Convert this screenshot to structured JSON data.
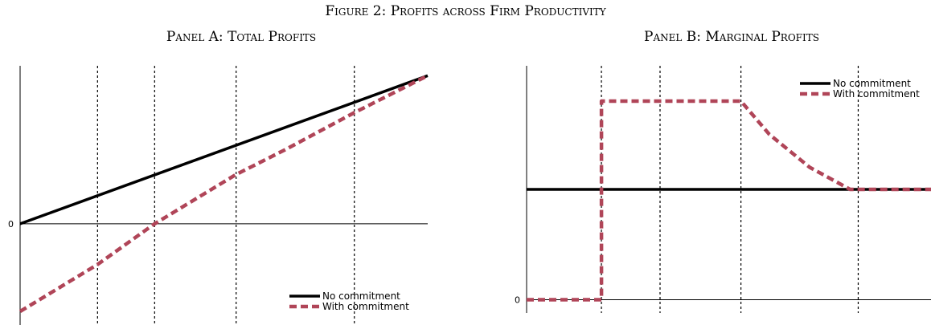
{
  "figure_caption": "Figure 2: Profits across Firm Productivity",
  "colors": {
    "no_commitment": "#000000",
    "with_commitment": "#b04558",
    "axis": "#000000"
  },
  "chart_data": [
    {
      "type": "line",
      "title": "Panel A: Total Profits",
      "xlabel": "",
      "ylabel": "",
      "xlim": [
        0,
        1
      ],
      "ylim": [
        -0.82,
        1.28
      ],
      "yticks": [
        {
          "value": 0,
          "label": "0"
        }
      ],
      "vlines": [
        0.19,
        0.33,
        0.53,
        0.82
      ],
      "grid": false,
      "legend": {
        "position": "bottom-right",
        "entries": [
          "No commitment",
          "With commitment"
        ]
      },
      "series": [
        {
          "name": "No commitment",
          "style": "solid",
          "x": [
            0,
            1
          ],
          "y": [
            0,
            1.2
          ]
        },
        {
          "name": "With commitment",
          "style": "dashed",
          "x": [
            0,
            0.19,
            0.33,
            0.53,
            0.65,
            0.82,
            1.0
          ],
          "y": [
            -0.71,
            -0.33,
            0.0,
            0.4,
            0.6,
            0.9,
            1.2
          ]
        }
      ]
    },
    {
      "type": "line",
      "title": "Panel B: Marginal Profits",
      "xlabel": "",
      "ylabel": "",
      "xlim": [
        0,
        1
      ],
      "ylim": [
        -0.12,
        2.12
      ],
      "yticks": [
        {
          "value": 0,
          "label": "0"
        }
      ],
      "vlines": [
        0.185,
        0.33,
        0.53,
        0.82
      ],
      "grid": false,
      "legend": {
        "position": "top-right",
        "entries": [
          "No commitment",
          "With commitment"
        ]
      },
      "series": [
        {
          "name": "No commitment",
          "style": "solid",
          "x": [
            0,
            1
          ],
          "y": [
            1,
            1
          ]
        },
        {
          "name": "With commitment",
          "style": "dashed",
          "x": [
            0,
            0.185,
            0.185,
            0.53,
            0.6,
            0.7,
            0.8,
            0.82,
            1.0
          ],
          "y": [
            0,
            0,
            1.8,
            1.8,
            1.5,
            1.2,
            1.0,
            1.0,
            1.0
          ]
        }
      ]
    }
  ]
}
